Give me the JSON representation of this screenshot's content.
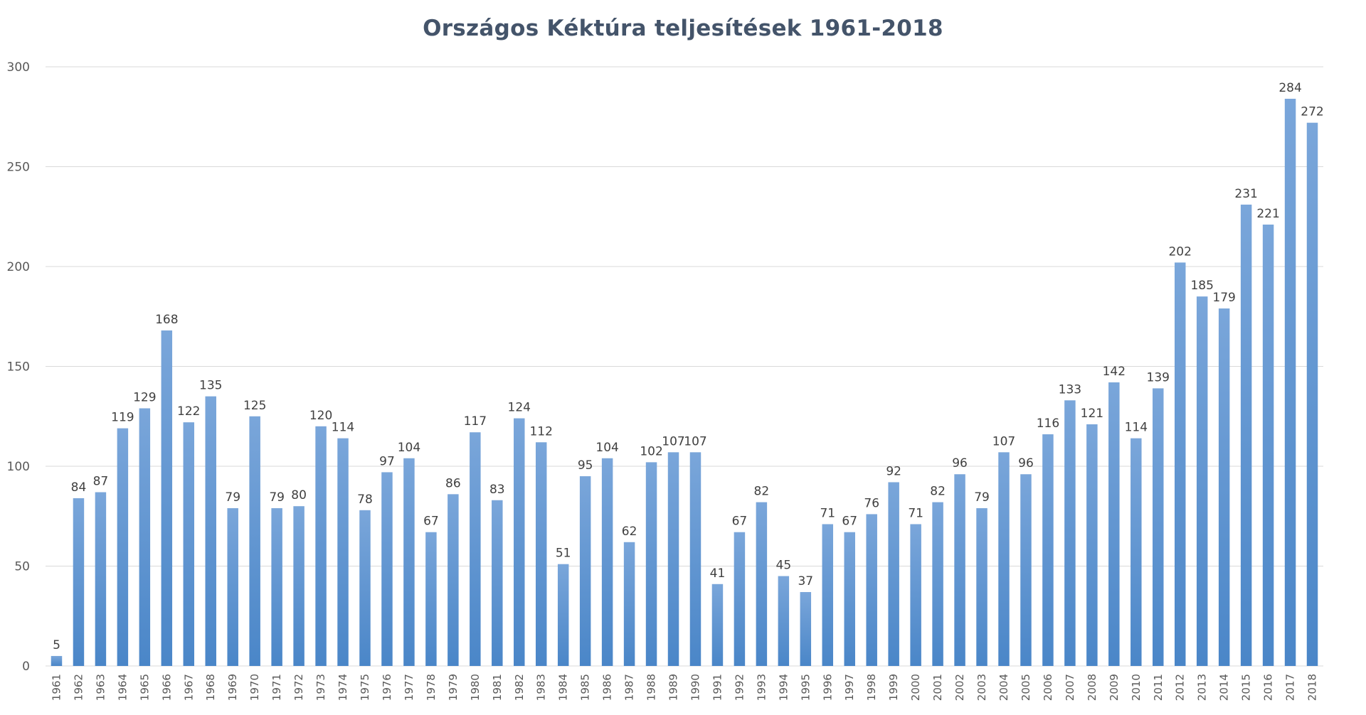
{
  "chart_data": {
    "type": "bar",
    "title": "Országos  Kéktúra teljesítések 1961-2018",
    "xlabel": "",
    "ylabel": "",
    "ylim": [
      0,
      300
    ],
    "yticks": [
      0,
      50,
      100,
      150,
      200,
      250,
      300
    ],
    "grid": true,
    "legend": "none",
    "bar_color_top": "#7aa6da",
    "bar_color_bottom": "#4a86c8",
    "categories": [
      "1961",
      "1962",
      "1963",
      "1964",
      "1965",
      "1966",
      "1967",
      "1968",
      "1969",
      "1970",
      "1971",
      "1972",
      "1973",
      "1974",
      "1975",
      "1976",
      "1977",
      "1978",
      "1979",
      "1980",
      "1981",
      "1982",
      "1983",
      "1984",
      "1985",
      "1986",
      "1987",
      "1988",
      "1989",
      "1990",
      "1991",
      "1992",
      "1993",
      "1994",
      "1995",
      "1996",
      "1997",
      "1998",
      "1999",
      "2000",
      "2001",
      "2002",
      "2003",
      "2004",
      "2005",
      "2006",
      "2007",
      "2008",
      "2009",
      "2010",
      "2011",
      "2012",
      "2013",
      "2014",
      "2015",
      "2016",
      "2017",
      "2018"
    ],
    "values": [
      5,
      84,
      87,
      119,
      129,
      168,
      122,
      135,
      79,
      125,
      79,
      80,
      120,
      114,
      78,
      97,
      104,
      67,
      86,
      117,
      83,
      124,
      112,
      51,
      95,
      104,
      62,
      102,
      107,
      107,
      41,
      67,
      82,
      45,
      37,
      71,
      67,
      76,
      92,
      71,
      82,
      96,
      79,
      107,
      96,
      116,
      133,
      121,
      142,
      114,
      139,
      202,
      185,
      179,
      231,
      221,
      284,
      272
    ]
  }
}
